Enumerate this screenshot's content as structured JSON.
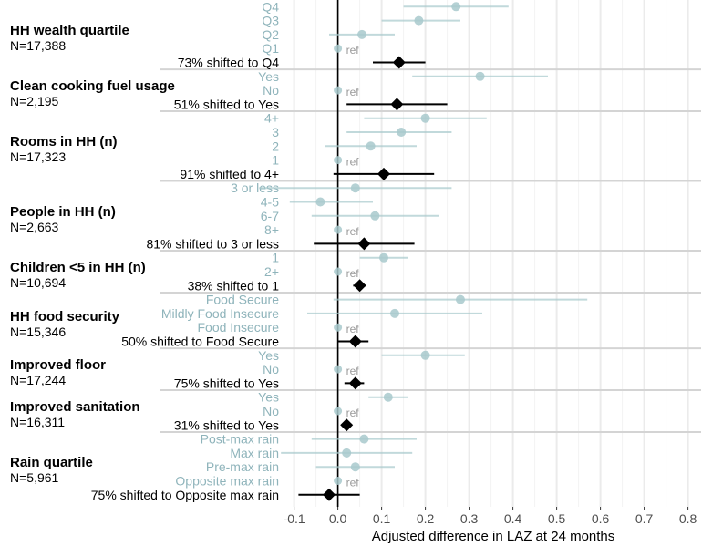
{
  "chart_data": {
    "type": "forest",
    "xlabel": "Adjusted difference in LAZ at 24 months",
    "xlim": [
      -0.12,
      0.83
    ],
    "x_ticks": [
      -0.1,
      0.0,
      0.1,
      0.2,
      0.3,
      0.4,
      0.5,
      0.6,
      0.7,
      0.8
    ],
    "x_tick_labels": [
      "-0.1",
      "0.0",
      "0.1",
      "0.2",
      "0.3",
      "0.4",
      "0.5",
      "0.6",
      "0.7",
      "0.8"
    ],
    "reference_line": 0,
    "ref_label": "ref",
    "colors": {
      "category": "#a8c9cc",
      "category_text": "#8fb4bb",
      "shifted": "#000000",
      "grid": "#ebebeb",
      "separator": "#d4d4d4"
    },
    "groups": [
      {
        "title": "HH wealth quartile",
        "n": "N=17,388",
        "rows": [
          {
            "label": "Q4",
            "est": 0.27,
            "lo": 0.15,
            "hi": 0.39
          },
          {
            "label": "Q3",
            "est": 0.185,
            "lo": 0.1,
            "hi": 0.28
          },
          {
            "label": "Q2",
            "est": 0.055,
            "lo": -0.02,
            "hi": 0.13
          },
          {
            "label": "Q1",
            "est": 0.0,
            "lo": null,
            "hi": null,
            "ref": true
          },
          {
            "label": "73% shifted to Q4",
            "est": 0.14,
            "lo": 0.08,
            "hi": 0.2,
            "shifted": true
          }
        ]
      },
      {
        "title": "Clean cooking fuel usage",
        "n": "N=2,195",
        "rows": [
          {
            "label": "Yes",
            "est": 0.325,
            "lo": 0.17,
            "hi": 0.48
          },
          {
            "label": "No",
            "est": 0.0,
            "lo": null,
            "hi": null,
            "ref": true
          },
          {
            "label": "51% shifted to Yes",
            "est": 0.135,
            "lo": 0.02,
            "hi": 0.25,
            "shifted": true
          }
        ]
      },
      {
        "title": "Rooms in HH (n)",
        "n": "N=17,323",
        "rows": [
          {
            "label": "4+",
            "est": 0.2,
            "lo": 0.06,
            "hi": 0.34
          },
          {
            "label": "3",
            "est": 0.145,
            "lo": 0.02,
            "hi": 0.26
          },
          {
            "label": "2",
            "est": 0.075,
            "lo": -0.03,
            "hi": 0.18
          },
          {
            "label": "1",
            "est": 0.0,
            "lo": null,
            "hi": null,
            "ref": true
          },
          {
            "label": "91% shifted to 4+",
            "est": 0.105,
            "lo": -0.01,
            "hi": 0.22,
            "shifted": true
          }
        ]
      },
      {
        "title": "People in HH (n)",
        "n": "N=2,663",
        "rows": [
          {
            "label": "3 or less",
            "est": 0.04,
            "lo": -0.18,
            "hi": 0.26
          },
          {
            "label": "4-5",
            "est": -0.04,
            "lo": -0.11,
            "hi": 0.08
          },
          {
            "label": "6-7",
            "est": 0.085,
            "lo": -0.06,
            "hi": 0.23
          },
          {
            "label": "8+",
            "est": 0.0,
            "lo": null,
            "hi": null,
            "ref": true
          },
          {
            "label": "81% shifted to 3 or less",
            "est": 0.06,
            "lo": -0.055,
            "hi": 0.175,
            "shifted": true
          }
        ]
      },
      {
        "title": "Children <5 in HH (n)",
        "n": "N=10,694",
        "rows": [
          {
            "label": "1",
            "est": 0.105,
            "lo": 0.05,
            "hi": 0.16
          },
          {
            "label": "2+",
            "est": 0.0,
            "lo": null,
            "hi": null,
            "ref": true
          },
          {
            "label": "38% shifted to 1",
            "est": 0.05,
            "lo": 0.035,
            "hi": 0.065,
            "shifted": true
          }
        ]
      },
      {
        "title": "HH food security",
        "n": "N=15,346",
        "rows": [
          {
            "label": "Food Secure",
            "est": 0.28,
            "lo": -0.01,
            "hi": 0.57
          },
          {
            "label": "Mildly Food Insecure",
            "est": 0.13,
            "lo": -0.07,
            "hi": 0.33
          },
          {
            "label": "Food Insecure",
            "est": 0.0,
            "lo": null,
            "hi": null,
            "ref": true
          },
          {
            "label": "50% shifted to Food Secure",
            "est": 0.04,
            "lo": 0.0,
            "hi": 0.07,
            "shifted": true
          }
        ]
      },
      {
        "title": "Improved floor",
        "n": "N=17,244",
        "rows": [
          {
            "label": "Yes",
            "est": 0.2,
            "lo": 0.1,
            "hi": 0.29
          },
          {
            "label": "No",
            "est": 0.0,
            "lo": null,
            "hi": null,
            "ref": true
          },
          {
            "label": "75% shifted to Yes",
            "est": 0.04,
            "lo": 0.015,
            "hi": 0.06,
            "shifted": true
          }
        ]
      },
      {
        "title": "Improved sanitation",
        "n": "N=16,311",
        "rows": [
          {
            "label": "Yes",
            "est": 0.115,
            "lo": 0.07,
            "hi": 0.16
          },
          {
            "label": "No",
            "est": 0.0,
            "lo": null,
            "hi": null,
            "ref": true
          },
          {
            "label": "31% shifted to Yes",
            "est": 0.02,
            "lo": 0.01,
            "hi": 0.03,
            "shifted": true
          }
        ]
      },
      {
        "title": "Rain quartile",
        "n": "N=5,961",
        "rows": [
          {
            "label": "Post-max  rain",
            "est": 0.06,
            "lo": -0.06,
            "hi": 0.18
          },
          {
            "label": "Max rain",
            "est": 0.02,
            "lo": -0.13,
            "hi": 0.17
          },
          {
            "label": "Pre-max  rain",
            "est": 0.04,
            "lo": -0.05,
            "hi": 0.13
          },
          {
            "label": "Opposite max rain",
            "est": 0.0,
            "lo": null,
            "hi": null,
            "ref": true
          },
          {
            "label": "75% shifted to Opposite max rain",
            "est": -0.02,
            "lo": -0.09,
            "hi": 0.05,
            "shifted": true
          }
        ]
      }
    ]
  }
}
